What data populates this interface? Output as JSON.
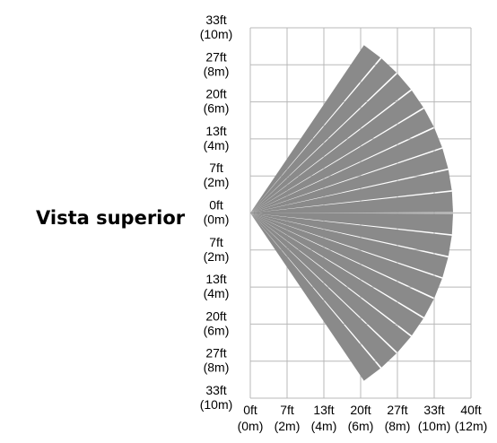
{
  "title": "Vista superior",
  "y_ticks": [
    {
      "ft": "33ft",
      "m": "(10m)"
    },
    {
      "ft": "27ft",
      "m": "(8m)"
    },
    {
      "ft": "20ft",
      "m": "(6m)"
    },
    {
      "ft": "13ft",
      "m": "(4m)"
    },
    {
      "ft": "7ft",
      "m": "(2m)"
    },
    {
      "ft": "0ft",
      "m": "(0m)"
    },
    {
      "ft": "7ft",
      "m": "(2m)"
    },
    {
      "ft": "13ft",
      "m": "(4m)"
    },
    {
      "ft": "20ft",
      "m": "(6m)"
    },
    {
      "ft": "27ft",
      "m": "(8m)"
    },
    {
      "ft": "33ft",
      "m": "(10m)"
    }
  ],
  "x_ticks": [
    {
      "ft": "0ft",
      "m": "(0m)"
    },
    {
      "ft": "7ft",
      "m": "(2m)"
    },
    {
      "ft": "13ft",
      "m": "(4m)"
    },
    {
      "ft": "20ft",
      "m": "(6m)"
    },
    {
      "ft": "27ft",
      "m": "(8m)"
    },
    {
      "ft": "33ft",
      "m": "(10m)"
    },
    {
      "ft": "40ft",
      "m": "(12m)"
    }
  ],
  "detection_pattern": {
    "beam_count": 18,
    "max_range_m": 12,
    "beam_color": "#8a8a8a"
  },
  "colors": {
    "grid": "#b8b8b8",
    "text": "#000000"
  }
}
